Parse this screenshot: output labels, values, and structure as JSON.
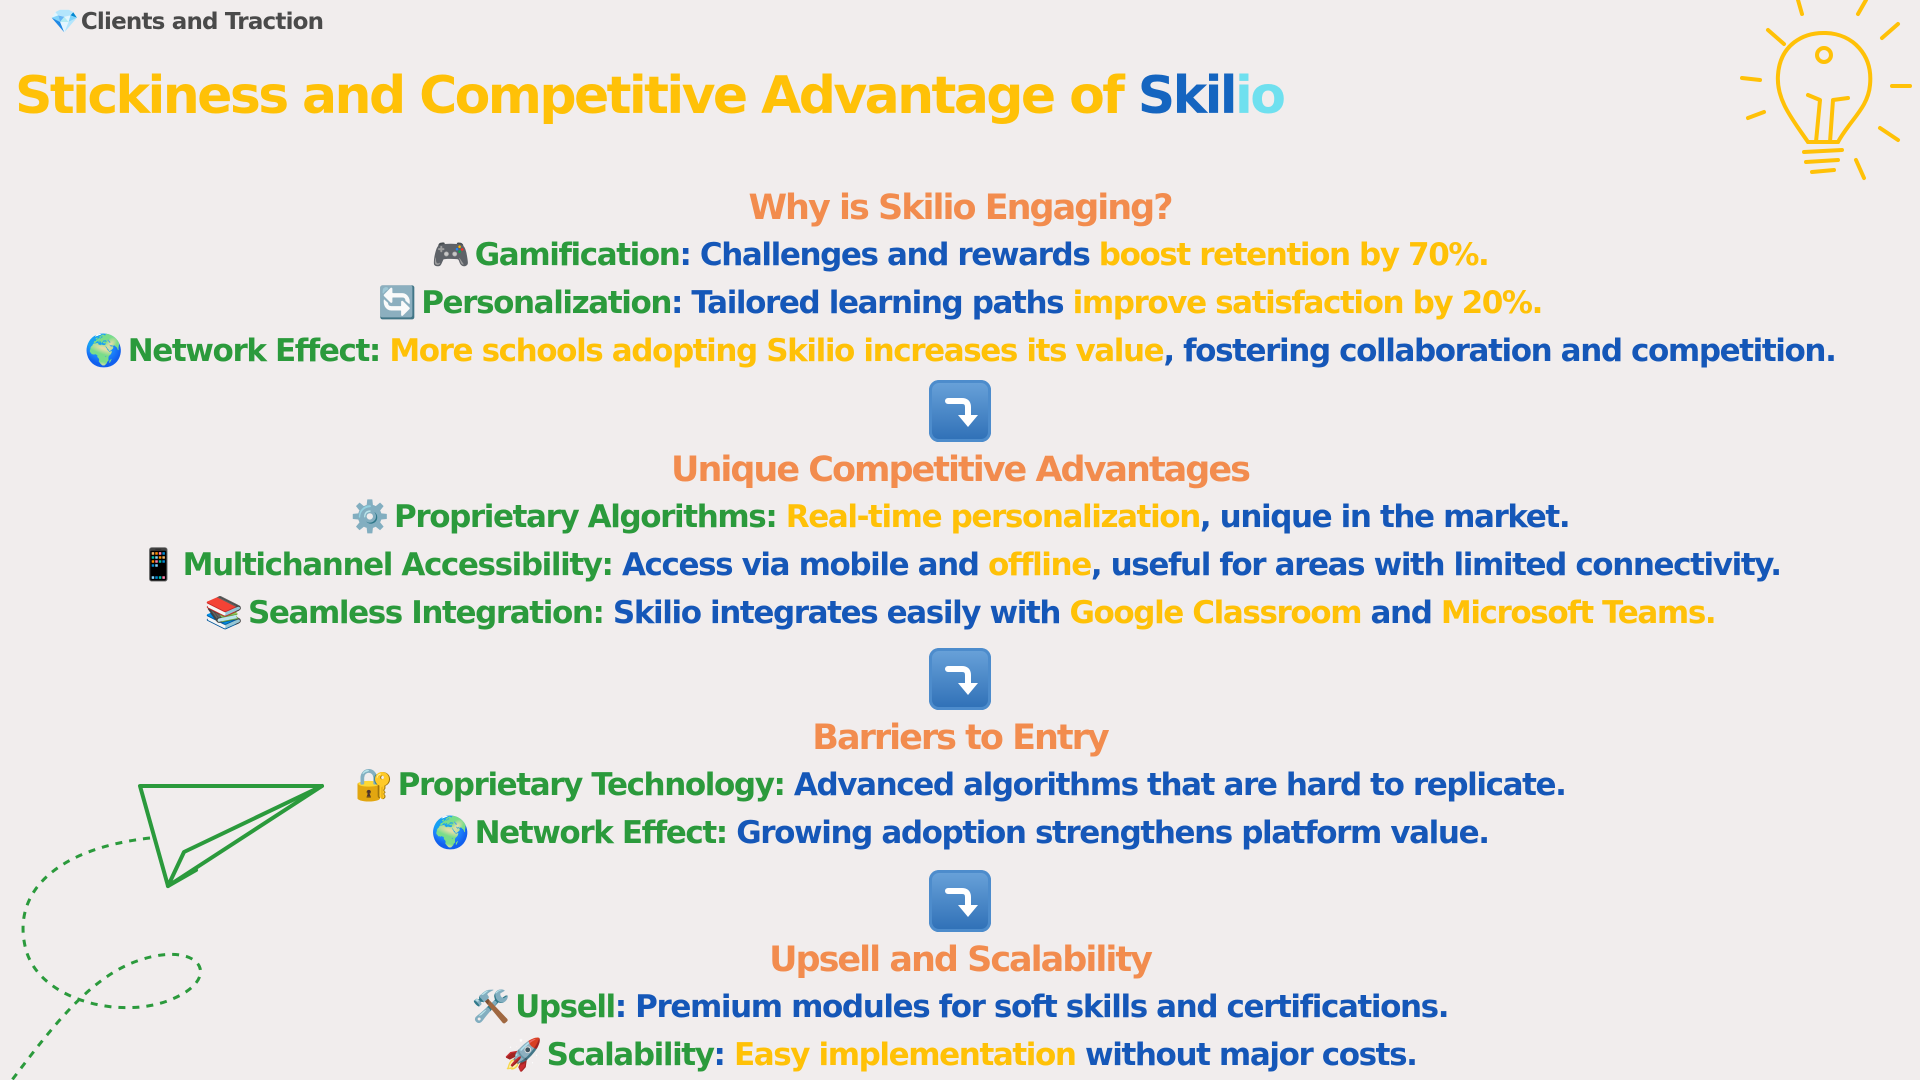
{
  "crumb": {
    "icon": "💎",
    "text": "Clients and Traction"
  },
  "title": {
    "prefix": "Stickiness and Competitive Advantage of ",
    "brand_a": "Skil",
    "brand_b": "io"
  },
  "colors": {
    "label": "#2b9a3c",
    "body": "#1557b8",
    "highlight": "#ffc107",
    "section": "#f28c4e",
    "background": "#f1eded"
  },
  "sections": [
    {
      "title": "Why is Skilio Engaging?",
      "items": [
        {
          "icon": "🎮",
          "label": "Gamification",
          "sep": ":",
          "a": " Challenges and rewards ",
          "b": "boost retention by 70%.",
          "c": ""
        },
        {
          "icon": "🔄",
          "label": "Personalization",
          "sep": ":",
          "a": " Tailored learning paths ",
          "b": "improve satisfaction by 20%.",
          "c": ""
        },
        {
          "icon": "🌍",
          "label": "Network Effect:",
          "sep": "",
          "a": " ",
          "b": "More schools adopting Skilio increases its value",
          "c": ", fostering collaboration and competition."
        }
      ]
    },
    {
      "title": "Unique Competitive Advantages",
      "items": [
        {
          "icon": "⚙️",
          "label": "Proprietary Algorithms:",
          "sep": "",
          "a": " ",
          "b": "Real-time personalization",
          "c": ", unique in the market."
        },
        {
          "icon": "📱",
          "label": "Multichannel Accessibility:",
          "sep": "",
          "a": " Access via mobile and ",
          "b": "offline",
          "c": ", useful for areas with limited connectivity."
        },
        {
          "icon": "📚",
          "label": "Seamless Integration:",
          "sep": "",
          "a": " Skilio integrates easily with ",
          "b": "Google Classroom",
          "c": " and ",
          "d": "Microsoft Teams."
        }
      ]
    },
    {
      "title": "Barriers to Entry",
      "items": [
        {
          "icon": "🔐",
          "label": "Proprietary Technology:",
          "sep": "",
          "a": " Advanced algorithms that are hard to replicate.",
          "b": "",
          "c": ""
        },
        {
          "icon": "🌍",
          "label": "Network Effect:",
          "sep": "",
          "a": " Growing adoption strengthens platform value.",
          "b": "",
          "c": ""
        }
      ]
    },
    {
      "title": "Upsell and Scalability",
      "items": [
        {
          "icon": "🛠️",
          "label": "Upsell",
          "sep": ":",
          "a": " Premium modules for soft skills and certifications.",
          "b": "",
          "c": ""
        },
        {
          "icon": "🚀",
          "label": "Scalability",
          "sep": ":",
          "a": " ",
          "b": "Easy implementation",
          "c": " without major costs."
        }
      ]
    }
  ],
  "icons": {
    "divider": "arrow-curve-down-icon",
    "top_right": "light-bulb-icon",
    "bottom_left": "paper-plane-icon"
  }
}
